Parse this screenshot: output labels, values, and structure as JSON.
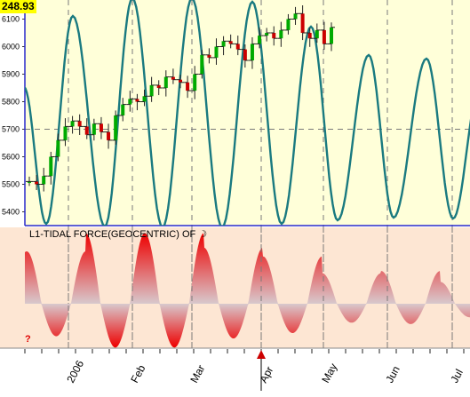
{
  "price_badge": "248.93",
  "indicator": {
    "title": "L1-TIDAL FORCE(GEOCENTRIC) OF ☽",
    "help_glyph": "?"
  },
  "colors": {
    "upper_bg": "#ffffd9",
    "lower_bg": "#fde6d3",
    "curve": "#1a7a80",
    "wave_peak": "#ee0000",
    "badge": "#ffff00",
    "axis_blue": "#2a2acc",
    "cursor": "#cc0000"
  },
  "chart_data": [
    {
      "type": "line",
      "title": "",
      "y_ticks": [
        "6100",
        "6000",
        "5900",
        "5800",
        "5700",
        "5600",
        "5500",
        "5400"
      ],
      "ylim": [
        5350,
        6150
      ],
      "x_ticks": [
        "2006",
        "Feb",
        "Mar",
        "Apr",
        "May",
        "Jun",
        "Jul"
      ],
      "horizontal_dashed_line": 5700,
      "grid": "vertical dashed at month starts",
      "series": [
        {
          "kind": "ohlc-bars",
          "approx_closes": [
            5510,
            5500,
            5530,
            5600,
            5660,
            5710,
            5730,
            5710,
            5680,
            5720,
            5690,
            5660,
            5750,
            5790,
            5810,
            5800,
            5820,
            5860,
            5850,
            5890,
            5880,
            5870,
            5840,
            5900,
            5970,
            5960,
            6000,
            6020,
            6010,
            5990,
            5950,
            6010,
            6040,
            6050,
            6030,
            6060,
            6100,
            6120,
            6050,
            6030,
            6060,
            6010,
            6070
          ]
        },
        {
          "kind": "oscillating-curve",
          "peaks": [
            "Jan",
            "Jan-end",
            "Feb-mid",
            "Mar-early",
            "Mar-end",
            "Apr-mid",
            "May-early",
            "Jun-early",
            "Jun-end"
          ]
        }
      ]
    },
    {
      "type": "area",
      "title": "L1-TIDAL FORCE(GEOCENTRIC) OF ☽",
      "series": [
        {
          "name": "",
          "cycles": 8,
          "peak_amplitudes": [
            0.72,
            0.97,
            0.97,
            0.77,
            0.65,
            0.42,
            0.45,
            0.3
          ]
        }
      ]
    }
  ]
}
